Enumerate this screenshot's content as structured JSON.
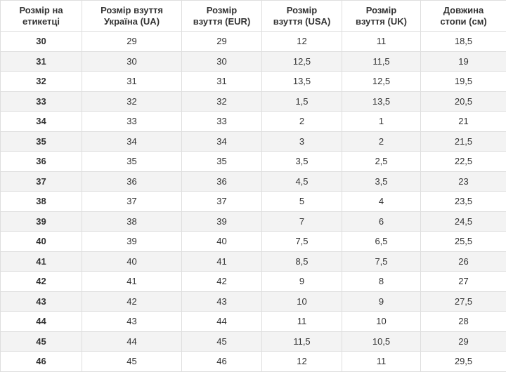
{
  "table": {
    "header": [
      [
        "Розмір на",
        "етикетці"
      ],
      [
        "Розмір взуття",
        "Україна (UA)"
      ],
      [
        "Розмір",
        "взуття (EUR)"
      ],
      [
        "Розмір",
        "взуття (USA)"
      ],
      [
        "Розмір",
        "взуття (UK)"
      ],
      [
        "Довжина",
        "стопи (см)"
      ]
    ],
    "rows": [
      [
        "30",
        "29",
        "29",
        "12",
        "11",
        "18,5"
      ],
      [
        "31",
        "30",
        "30",
        "12,5",
        "11,5",
        "19"
      ],
      [
        "32",
        "31",
        "31",
        "13,5",
        "12,5",
        "19,5"
      ],
      [
        "33",
        "32",
        "32",
        "1,5",
        "13,5",
        "20,5"
      ],
      [
        "34",
        "33",
        "33",
        "2",
        "1",
        "21"
      ],
      [
        "35",
        "34",
        "34",
        "3",
        "2",
        "21,5"
      ],
      [
        "36",
        "35",
        "35",
        "3,5",
        "2,5",
        "22,5"
      ],
      [
        "37",
        "36",
        "36",
        "4,5",
        "3,5",
        "23"
      ],
      [
        "38",
        "37",
        "37",
        "5",
        "4",
        "23,5"
      ],
      [
        "39",
        "38",
        "39",
        "7",
        "6",
        "24,5"
      ],
      [
        "40",
        "39",
        "40",
        "7,5",
        "6,5",
        "25,5"
      ],
      [
        "41",
        "40",
        "41",
        "8,5",
        "7,5",
        "26"
      ],
      [
        "42",
        "41",
        "42",
        "9",
        "8",
        "27"
      ],
      [
        "43",
        "42",
        "43",
        "10",
        "9",
        "27,5"
      ],
      [
        "44",
        "43",
        "44",
        "11",
        "10",
        "28"
      ],
      [
        "45",
        "44",
        "45",
        "11,5",
        "10,5",
        "29"
      ],
      [
        "46",
        "45",
        "46",
        "12",
        "11",
        "29,5"
      ]
    ]
  }
}
